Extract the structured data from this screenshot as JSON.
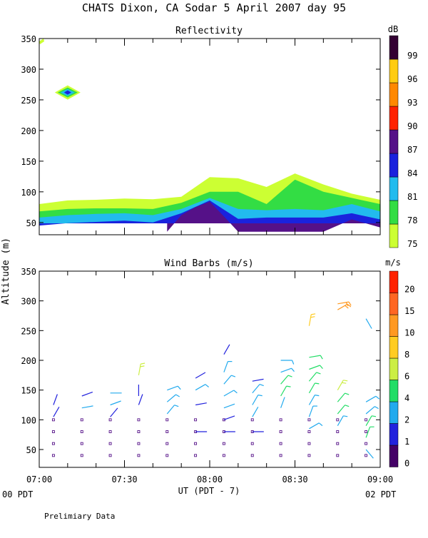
{
  "header": {
    "title": "CHATS Dixon, CA  Sodar   5 April 2007  day  95"
  },
  "footer": {
    "note": "Prelimiary Data",
    "start_tz": "00 PDT",
    "end_tz": "02 PDT",
    "xlabel": "UT  (PDT - 7)"
  },
  "yaxis_label": "Altitude (m)",
  "x_ticks": [
    "07:00",
    "07:30",
    "08:00",
    "08:30",
    "09:00"
  ],
  "colors": {
    "dB": [
      "#ccff33",
      "#33dd44",
      "#22bbee",
      "#1a22dd",
      "#551188",
      "#ff2200",
      "#ff8800",
      "#ffcc11",
      "#330033"
    ],
    "ms": [
      "#440066",
      "#2222dd",
      "#22aaee",
      "#22dd66",
      "#ccee44",
      "#ffcc22",
      "#ff9922",
      "#ff6622",
      "#ff2200"
    ]
  },
  "chart_data": [
    {
      "type": "heatmap",
      "title": "Reflectivity",
      "ylabel": "Altitude (m)",
      "ylim": [
        30,
        350
      ],
      "y_ticks": [
        50,
        100,
        150,
        200,
        250,
        300,
        350
      ],
      "x_range": [
        "07:00",
        "09:00"
      ],
      "colorbar": {
        "unit": "dB",
        "levels": [
          75,
          78,
          81,
          84,
          87,
          90,
          93,
          96,
          99
        ]
      },
      "contours": [
        {
          "level": 75,
          "color": "#ccff33",
          "x_minutes": [
            0,
            10,
            20,
            30,
            40,
            50,
            60,
            70,
            80,
            90,
            100,
            110,
            120
          ],
          "top_m": [
            80,
            86,
            87,
            89,
            88,
            92,
            124,
            122,
            108,
            130,
            112,
            97,
            87
          ]
        },
        {
          "level": 78,
          "color": "#33dd44",
          "x_minutes": [
            0,
            10,
            20,
            30,
            40,
            50,
            60,
            70,
            80,
            90,
            100,
            110,
            120
          ],
          "top_m": [
            68,
            72,
            73,
            73,
            72,
            82,
            100,
            100,
            80,
            120,
            100,
            90,
            80
          ]
        },
        {
          "level": 81,
          "color": "#22bbee",
          "x_minutes": [
            0,
            10,
            20,
            30,
            40,
            50,
            60,
            70,
            80,
            90,
            100,
            110,
            120
          ],
          "top_m": [
            58,
            62,
            64,
            65,
            62,
            72,
            90,
            72,
            70,
            72,
            70,
            80,
            68
          ]
        },
        {
          "level": 84,
          "color": "#1a22dd",
          "x_minutes": [
            0,
            10,
            20,
            30,
            40,
            50,
            60,
            70,
            80,
            90,
            100,
            110,
            120
          ],
          "top_m": [
            45,
            49,
            51,
            53,
            50,
            65,
            86,
            56,
            58,
            58,
            58,
            65,
            55
          ]
        },
        {
          "level": 87,
          "color": "#551188",
          "x_minutes": [
            45,
            50,
            55,
            60,
            65,
            70,
            100,
            110,
            120
          ],
          "top_m": [
            35,
            62,
            75,
            84,
            60,
            35,
            35,
            55,
            42
          ]
        }
      ],
      "spots": [
        {
          "time": "07:10",
          "altitude_m": 262,
          "peak_dB": 84
        }
      ],
      "xlabel": "",
      "x_tick_labels": []
    },
    {
      "type": "scatter",
      "title": "Wind Barbs (m/s)",
      "ylabel": "Altitude (m)",
      "ylim": [
        20,
        350
      ],
      "y_ticks": [
        50,
        100,
        150,
        200,
        250,
        300,
        350
      ],
      "x_ticks": [
        "07:00",
        "07:30",
        "08:00",
        "08:30",
        "09:00"
      ],
      "xlabel": "UT  (PDT - 7)",
      "colorbar": {
        "unit": "m/s",
        "levels": [
          0,
          1,
          2,
          4,
          6,
          8,
          10,
          15,
          20
        ]
      },
      "calm_points": {
        "times_minutes": [
          5,
          15,
          25,
          35,
          45,
          55,
          65,
          75,
          85,
          95,
          105,
          115
        ],
        "altitudes_m": [
          40,
          60,
          80,
          100
        ]
      },
      "barbs": [
        {
          "t": 5,
          "z": 125,
          "speed": 1,
          "dir": 20
        },
        {
          "t": 5,
          "z": 105,
          "speed": 1,
          "dir": 30
        },
        {
          "t": 15,
          "z": 140,
          "speed": 1,
          "dir": 70
        },
        {
          "t": 15,
          "z": 120,
          "speed": 2,
          "dir": 80
        },
        {
          "t": 25,
          "z": 145,
          "speed": 2,
          "dir": 90
        },
        {
          "t": 25,
          "z": 125,
          "speed": 2,
          "dir": 70
        },
        {
          "t": 25,
          "z": 105,
          "speed": 1,
          "dir": 40
        },
        {
          "t": 35,
          "z": 175,
          "speed": 6,
          "dir": 10
        },
        {
          "t": 35,
          "z": 140,
          "speed": 1,
          "dir": 0
        },
        {
          "t": 35,
          "z": 125,
          "speed": 1,
          "dir": 20
        },
        {
          "t": 45,
          "z": 150,
          "speed": 3,
          "dir": 70
        },
        {
          "t": 45,
          "z": 130,
          "speed": 3,
          "dir": 50
        },
        {
          "t": 45,
          "z": 110,
          "speed": 3,
          "dir": 40
        },
        {
          "t": 55,
          "z": 170,
          "speed": 1,
          "dir": 60
        },
        {
          "t": 55,
          "z": 150,
          "speed": 3,
          "dir": 60
        },
        {
          "t": 55,
          "z": 125,
          "speed": 1,
          "dir": 80
        },
        {
          "t": 55,
          "z": 80,
          "speed": 1,
          "dir": 90
        },
        {
          "t": 65,
          "z": 210,
          "speed": 1,
          "dir": 30
        },
        {
          "t": 65,
          "z": 180,
          "speed": 3,
          "dir": 20
        },
        {
          "t": 65,
          "z": 160,
          "speed": 3,
          "dir": 40
        },
        {
          "t": 65,
          "z": 140,
          "speed": 3,
          "dir": 60
        },
        {
          "t": 65,
          "z": 120,
          "speed": 2,
          "dir": 70
        },
        {
          "t": 65,
          "z": 100,
          "speed": 1,
          "dir": 70
        },
        {
          "t": 65,
          "z": 80,
          "speed": 1,
          "dir": 90
        },
        {
          "t": 75,
          "z": 165,
          "speed": 1,
          "dir": 80
        },
        {
          "t": 75,
          "z": 145,
          "speed": 3,
          "dir": 40
        },
        {
          "t": 75,
          "z": 125,
          "speed": 3,
          "dir": 30
        },
        {
          "t": 75,
          "z": 105,
          "speed": 2,
          "dir": 30
        },
        {
          "t": 75,
          "z": 80,
          "speed": 1,
          "dir": 90
        },
        {
          "t": 85,
          "z": 200,
          "speed": 3,
          "dir": 90
        },
        {
          "t": 85,
          "z": 180,
          "speed": 3,
          "dir": 70
        },
        {
          "t": 85,
          "z": 160,
          "speed": 4,
          "dir": 40
        },
        {
          "t": 85,
          "z": 140,
          "speed": 4,
          "dir": 30
        },
        {
          "t": 85,
          "z": 120,
          "speed": 2,
          "dir": 20
        },
        {
          "t": 95,
          "z": 258,
          "speed": 8,
          "dir": 10
        },
        {
          "t": 95,
          "z": 205,
          "speed": 4,
          "dir": 80
        },
        {
          "t": 95,
          "z": 185,
          "speed": 4,
          "dir": 70
        },
        {
          "t": 95,
          "z": 165,
          "speed": 4,
          "dir": 40
        },
        {
          "t": 95,
          "z": 145,
          "speed": 4,
          "dir": 30
        },
        {
          "t": 95,
          "z": 125,
          "speed": 3,
          "dir": 30
        },
        {
          "t": 95,
          "z": 105,
          "speed": 3,
          "dir": 20
        },
        {
          "t": 95,
          "z": 85,
          "speed": 3,
          "dir": 60
        },
        {
          "t": 105,
          "z": 295,
          "speed": 10,
          "dir": 80
        },
        {
          "t": 105,
          "z": 285,
          "speed": 10,
          "dir": 60
        },
        {
          "t": 105,
          "z": 150,
          "speed": 6,
          "dir": 30
        },
        {
          "t": 105,
          "z": 130,
          "speed": 4,
          "dir": 40
        },
        {
          "t": 105,
          "z": 110,
          "speed": 4,
          "dir": 40
        },
        {
          "t": 105,
          "z": 90,
          "speed": 3,
          "dir": 30
        },
        {
          "t": 115,
          "z": 270,
          "speed": 2,
          "dir": 150
        },
        {
          "t": 115,
          "z": 130,
          "speed": 3,
          "dir": 60
        },
        {
          "t": 115,
          "z": 110,
          "speed": 3,
          "dir": 50
        },
        {
          "t": 115,
          "z": 90,
          "speed": 4,
          "dir": 30
        },
        {
          "t": 115,
          "z": 70,
          "speed": 4,
          "dir": 20
        },
        {
          "t": 115,
          "z": 50,
          "speed": 2,
          "dir": 140
        }
      ]
    }
  ]
}
